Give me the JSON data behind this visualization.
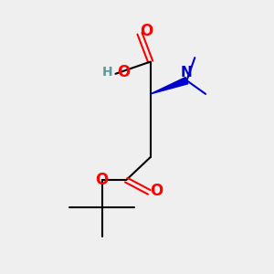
{
  "bg_color": "#efefef",
  "bond_color": "#000000",
  "o_color": "#ff0000",
  "n_color": "#0000cc",
  "h_color": "#5a9a9a",
  "lw": 1.5,
  "xlim": [
    0,
    10
  ],
  "ylim": [
    0,
    10
  ]
}
